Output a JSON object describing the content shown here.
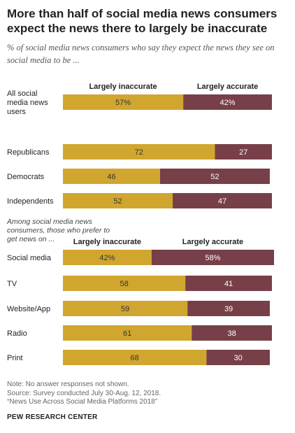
{
  "header": {
    "title": "More than half of social media news consumers expect the news there to largely be inaccurate",
    "subtitle": "% of social media news consumers who say they expect the news they see on social media to be ..."
  },
  "chart_data": {
    "type": "bar",
    "orientation": "horizontal",
    "stacked": true,
    "colors": {
      "inaccurate": "#d1a62f",
      "accurate": "#773f47"
    },
    "series_labels": [
      "Largely inaccurate",
      "Largely accurate"
    ],
    "groups": [
      {
        "heading": "",
        "rows": [
          {
            "label": [
              "All social",
              "media news",
              "users"
            ],
            "inaccurate": 57,
            "accurate": 42,
            "inaccurate_text": "57%",
            "accurate_text": "42%"
          },
          {
            "label": [
              "Republicans"
            ],
            "inaccurate": 72,
            "accurate": 27,
            "inaccurate_text": "72",
            "accurate_text": "27"
          },
          {
            "label": [
              "Democrats"
            ],
            "inaccurate": 46,
            "accurate": 52,
            "inaccurate_text": "46",
            "accurate_text": "52"
          },
          {
            "label": [
              "Independents"
            ],
            "inaccurate": 52,
            "accurate": 47,
            "inaccurate_text": "52",
            "accurate_text": "47"
          }
        ]
      },
      {
        "heading": [
          "Among social media news",
          "consumers, those who prefer to",
          "get news on ..."
        ],
        "rows": [
          {
            "label": [
              "Social media"
            ],
            "inaccurate": 42,
            "accurate": 58,
            "inaccurate_text": "42%",
            "accurate_text": "58%"
          },
          {
            "label": [
              "TV"
            ],
            "inaccurate": 58,
            "accurate": 41,
            "inaccurate_text": "58",
            "accurate_text": "41"
          },
          {
            "label": [
              "Website/App"
            ],
            "inaccurate": 59,
            "accurate": 39,
            "inaccurate_text": "59",
            "accurate_text": "39"
          },
          {
            "label": [
              "Radio"
            ],
            "inaccurate": 61,
            "accurate": 38,
            "inaccurate_text": "61",
            "accurate_text": "38"
          },
          {
            "label": [
              "Print"
            ],
            "inaccurate": 68,
            "accurate": 30,
            "inaccurate_text": "68",
            "accurate_text": "30"
          }
        ]
      }
    ]
  },
  "footer": {
    "note": "Note: No answer responses not shown.",
    "source": "Source: Survey conducted July 30-Aug. 12, 2018.",
    "report": "“News Use Across Social Media Platforms 2018”",
    "org": "PEW RESEARCH CENTER"
  }
}
